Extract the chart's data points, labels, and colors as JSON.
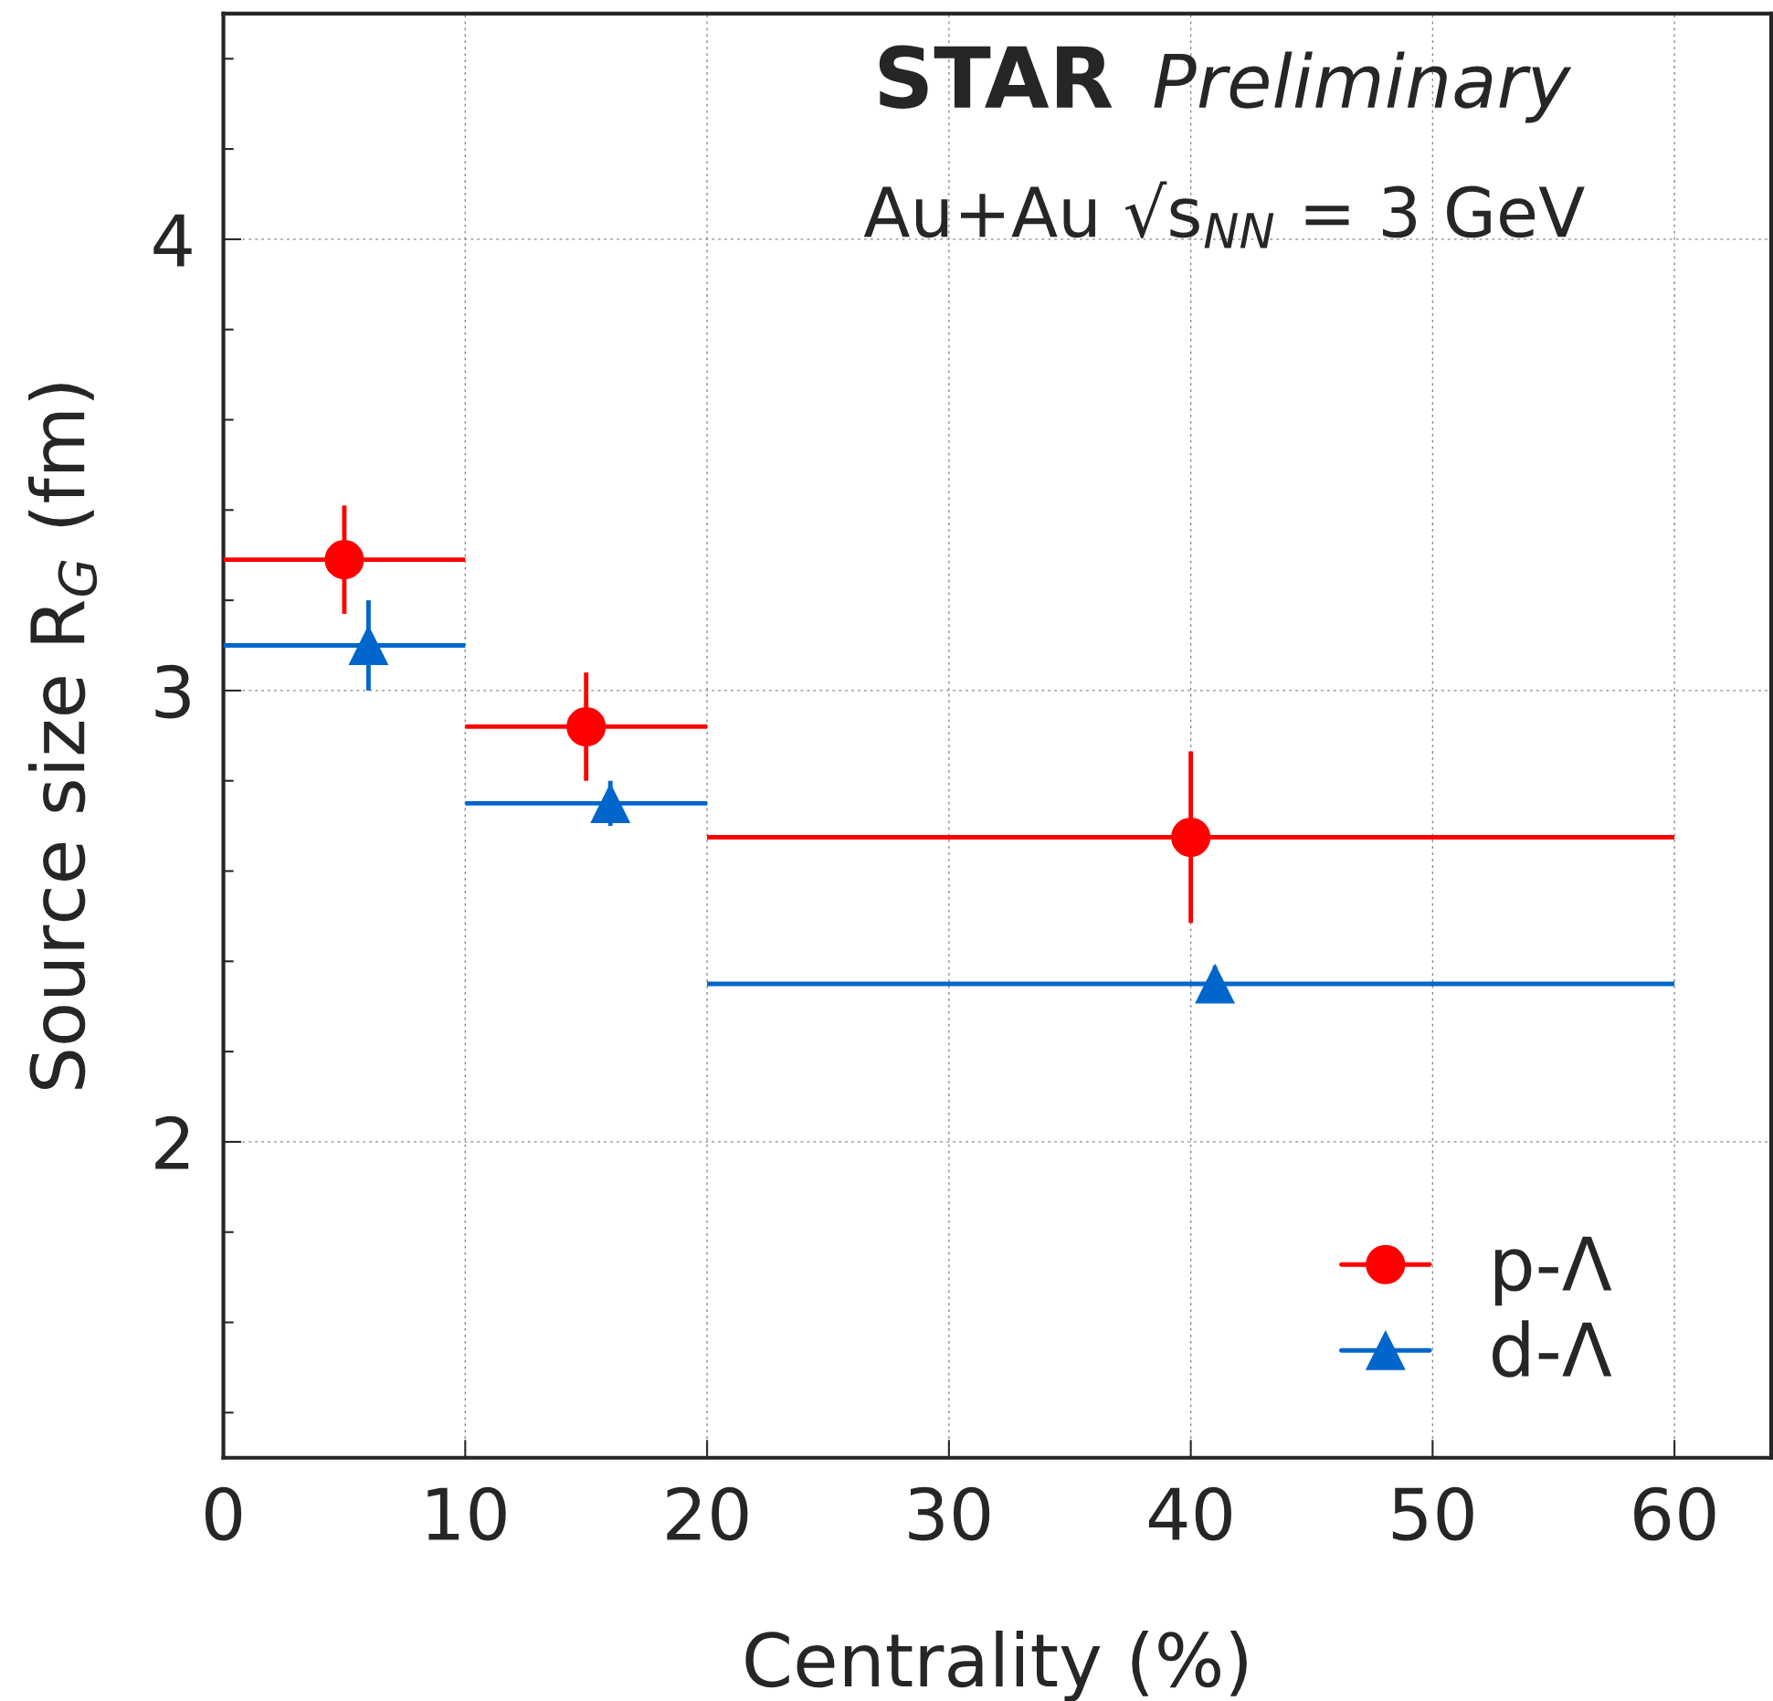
{
  "chart_data": {
    "type": "scatter",
    "xlabel": "Centrality (%)",
    "ylabel": "Source size R$_{G}$ (fm)",
    "annotations": [
      "STAR",
      "Preliminary",
      "Au+Au √s$_{NN}$ = 3 GeV"
    ],
    "series": [
      {
        "name": "p-Λ",
        "color": "#ff0000",
        "marker": "circle",
        "x": [
          5,
          15,
          40
        ],
        "values": [
          3.29,
          2.92,
          2.675
        ],
        "errors": [
          0.12,
          0.12,
          0.19
        ],
        "xerrors": [
          5,
          5,
          20
        ]
      },
      {
        "name": "d-Λ",
        "color": "#0066cc",
        "marker": "triangle",
        "x": [
          6,
          16,
          41
        ],
        "values": [
          3.1,
          2.75,
          2.35
        ],
        "errors": [
          0.1,
          0.05,
          0.04
        ],
        "xerrors": [
          [
            0,
            10
          ],
          [
            10,
            20
          ],
          [
            20,
            60
          ]
        ]
      }
    ],
    "xlim": [
      0,
      64
    ],
    "xticks": [
      0,
      10,
      20,
      30,
      40,
      50,
      60
    ],
    "ylim": [
      1.3,
      4.5
    ],
    "yticks": [
      {
        "value": 1.4,
        "label": null
      },
      {
        "value": 1.6,
        "label": null
      },
      {
        "value": 1.8,
        "label": null
      },
      2,
      {
        "value": 2.2,
        "label": null
      },
      {
        "value": 2.4,
        "label": null
      },
      {
        "value": 2.6,
        "label": null
      },
      {
        "value": 2.8,
        "label": null
      },
      3,
      {
        "value": 3.2,
        "label": null
      },
      {
        "value": 3.4,
        "label": null
      },
      {
        "value": 3.6,
        "label": null
      },
      {
        "value": 3.8,
        "label": null
      },
      4,
      {
        "value": 4.2,
        "label": null
      },
      {
        "value": 4.4,
        "label": null
      }
    ],
    "grid": true,
    "legend": "bottom right"
  }
}
